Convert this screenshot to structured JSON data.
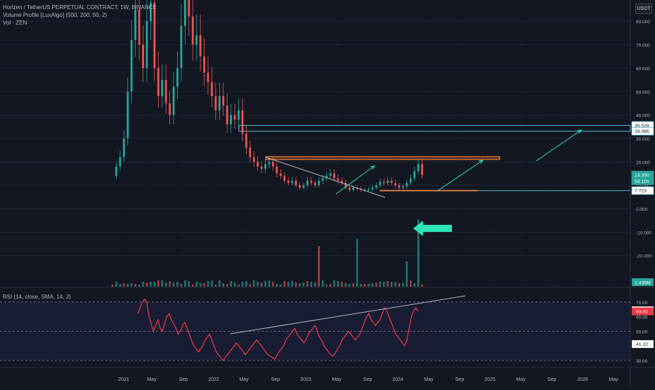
{
  "header": {
    "symbol_line": "Horizen / TetherUS PERPETUAL CONTRACT, 1W, BINANCE",
    "indicator_vp": "Volume Profile [LuxAlgo] (500, 200, 50, 2)",
    "indicator_vol": "Vol · ZEN",
    "currency": "USDT"
  },
  "rsi_panel": {
    "label": "RSI (14, close, SMA, 14, 2)"
  },
  "colors": {
    "background": "#131722",
    "up_candle": "#26a69a",
    "down_candle": "#ef5350",
    "rsi_line": "#f23645",
    "trendline": "#b2b5be",
    "level_line": "#5fb3c7",
    "resistance_zone": "#f77c3a",
    "arrow": "#2de5b4",
    "grid": "#1f2433"
  },
  "chart_data": [
    {
      "type": "candlestick",
      "title": "Horizen / TetherUS PERPETUAL CONTRACT, 1W, BINANCE",
      "x_tick_labels": [
        "2021",
        "May",
        "Sep",
        "2022",
        "May",
        "Sep",
        "2023",
        "May",
        "Sep",
        "2024",
        "May",
        "Sep",
        "2025",
        "May",
        "Sep",
        "2026",
        "May"
      ],
      "y_tick_labels": [
        "80.000",
        "70.000",
        "60.000",
        "50.000",
        "40.000",
        "30.000",
        "20.000",
        "10.000",
        "0.000",
        "-10.000",
        "-20.000"
      ],
      "yrange": [
        -30,
        90
      ],
      "price_labels": [
        {
          "text": "35.539",
          "value": 35.539,
          "color": "#5fb3c7"
        },
        {
          "text": "33.065",
          "value": 33.065,
          "color": "#5fb3c7"
        },
        {
          "text": "14.350",
          "value": 14.35,
          "color": "#26a69a"
        },
        {
          "text": "5d 11h",
          "value": 11.9,
          "color": "#26a69a"
        },
        {
          "text": "7.723",
          "value": 7.723,
          "color": "#5fb3c7"
        }
      ],
      "volume_label": "1.435M",
      "price_path": [
        [
          0,
          14
        ],
        [
          2,
          18
        ],
        [
          4,
          22
        ],
        [
          6,
          30
        ],
        [
          8,
          50
        ],
        [
          10,
          72
        ],
        [
          12,
          85
        ],
        [
          14,
          70
        ],
        [
          16,
          60
        ],
        [
          18,
          80
        ],
        [
          20,
          88
        ],
        [
          22,
          60
        ],
        [
          24,
          48
        ],
        [
          26,
          55
        ],
        [
          28,
          45
        ],
        [
          30,
          40
        ],
        [
          32,
          52
        ],
        [
          34,
          60
        ],
        [
          36,
          78
        ],
        [
          38,
          90
        ],
        [
          40,
          82
        ],
        [
          42,
          70
        ],
        [
          44,
          74
        ],
        [
          46,
          65
        ],
        [
          48,
          58
        ],
        [
          50,
          54
        ],
        [
          52,
          48
        ],
        [
          54,
          42
        ],
        [
          56,
          48
        ],
        [
          58,
          44
        ],
        [
          60,
          36
        ],
        [
          62,
          40
        ],
        [
          64,
          38
        ],
        [
          66,
          42
        ],
        [
          68,
          32
        ],
        [
          70,
          26
        ],
        [
          72,
          22
        ],
        [
          74,
          20
        ],
        [
          76,
          18
        ],
        [
          78,
          17
        ],
        [
          80,
          19
        ],
        [
          82,
          20
        ],
        [
          84,
          18
        ],
        [
          86,
          15
        ],
        [
          88,
          14
        ],
        [
          90,
          12
        ],
        [
          92,
          11
        ],
        [
          94,
          12
        ],
        [
          96,
          10
        ],
        [
          98,
          9
        ],
        [
          100,
          10
        ],
        [
          102,
          12
        ],
        [
          104,
          11
        ],
        [
          106,
          10
        ],
        [
          108,
          12
        ],
        [
          110,
          13
        ],
        [
          112,
          14
        ],
        [
          114,
          15
        ],
        [
          116,
          13
        ],
        [
          118,
          12
        ],
        [
          120,
          11
        ],
        [
          122,
          9
        ],
        [
          124,
          8
        ],
        [
          126,
          9
        ],
        [
          128,
          8.5
        ],
        [
          130,
          8
        ],
        [
          132,
          8
        ],
        [
          134,
          8.2
        ],
        [
          136,
          9
        ],
        [
          138,
          10
        ],
        [
          140,
          11.5
        ],
        [
          142,
          11
        ],
        [
          144,
          12
        ],
        [
          146,
          11
        ],
        [
          148,
          10
        ],
        [
          150,
          9
        ],
        [
          152,
          9.5
        ],
        [
          154,
          11
        ],
        [
          156,
          13
        ],
        [
          158,
          16
        ],
        [
          160,
          19
        ],
        [
          162,
          14.35
        ]
      ],
      "annotations": {
        "horizontal_levels": [
          35.539,
          33.065,
          7.723
        ],
        "resistance_zone": [
          21.0,
          22.2
        ],
        "support_zone": [
          7.5,
          8.0
        ],
        "projection_target": 33.065
      }
    },
    {
      "type": "line",
      "title": "RSI (14, close, SMA, 14, 2)",
      "y_tick_labels": [
        "70.00",
        "60.00",
        "50.00",
        "40.00",
        "30.00"
      ],
      "yrange": [
        28,
        73
      ],
      "value_labels": [
        {
          "text": "64.32",
          "value": 64.32,
          "color": "#ffffff"
        },
        {
          "text": "63.62",
          "value": 63.62,
          "color": "#f23645"
        },
        {
          "text": "41.22",
          "value": 41.22,
          "color": "#ffffff"
        }
      ],
      "guide_levels": [
        70,
        50,
        30
      ],
      "series": [
        {
          "values": [
            62,
            66,
            70,
            72,
            70,
            60,
            55,
            50,
            54,
            58,
            52,
            50,
            56,
            60,
            62,
            58,
            55,
            52,
            48,
            50,
            54,
            56,
            52,
            48,
            44,
            40,
            38,
            36,
            38,
            40,
            44,
            46,
            48,
            44,
            40,
            36,
            34,
            32,
            30,
            32,
            34,
            36,
            38,
            40,
            42,
            40,
            38,
            36,
            34,
            36,
            38,
            40,
            42,
            44,
            42,
            40,
            38,
            36,
            34,
            33,
            32,
            31,
            33,
            36,
            38,
            40,
            44,
            46,
            48,
            50,
            52,
            48,
            46,
            44,
            42,
            44,
            48,
            50,
            52,
            54,
            50,
            46,
            44,
            40,
            38,
            36,
            34,
            33,
            35,
            38,
            40,
            44,
            46,
            48,
            50,
            48,
            46,
            44,
            46,
            48,
            52,
            56,
            60,
            62,
            58,
            56,
            54,
            56,
            58,
            62,
            66,
            64,
            60,
            56,
            52,
            48,
            46,
            44,
            42,
            40,
            44,
            52,
            60,
            64,
            66,
            63.62
          ]
        }
      ]
    }
  ]
}
